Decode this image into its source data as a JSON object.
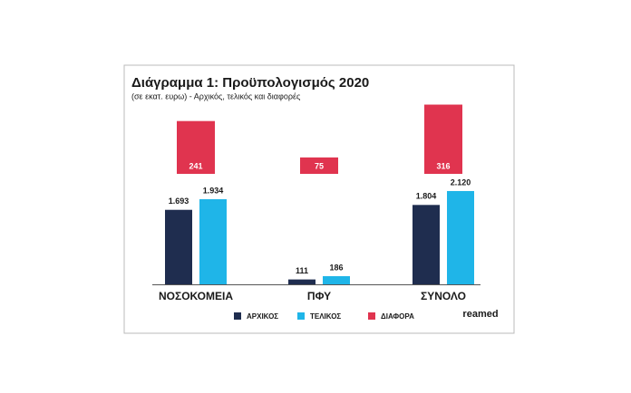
{
  "chart_data": {
    "type": "bar",
    "title": "Διάγραμμα 1: Προϋπολογισμός 2020",
    "subtitle": "(σε εκατ. ευρω) - Αρχικός, τελικός και διαφορές",
    "categories": [
      "ΝΟΣΟΚΟΜΕΙΑ",
      "ΠΦΥ",
      "ΣΥΝΟΛΟ"
    ],
    "series": [
      {
        "name": "ΑΡΧΙΚΟΣ",
        "color": "#1f2d4f",
        "values": [
          1693,
          111,
          1804
        ],
        "value_labels": [
          "1.693",
          "111",
          "1.804"
        ]
      },
      {
        "name": "ΤΕΛΙΚΟΣ",
        "color": "#1fb5e8",
        "values": [
          1934,
          186,
          2120
        ],
        "value_labels": [
          "1.934",
          "186",
          "2.120"
        ]
      },
      {
        "name": "ΔΙΑΦΟΡΑ",
        "color": "#e0344f",
        "values": [
          241,
          75,
          316
        ]
      }
    ],
    "logo": "reamed"
  }
}
